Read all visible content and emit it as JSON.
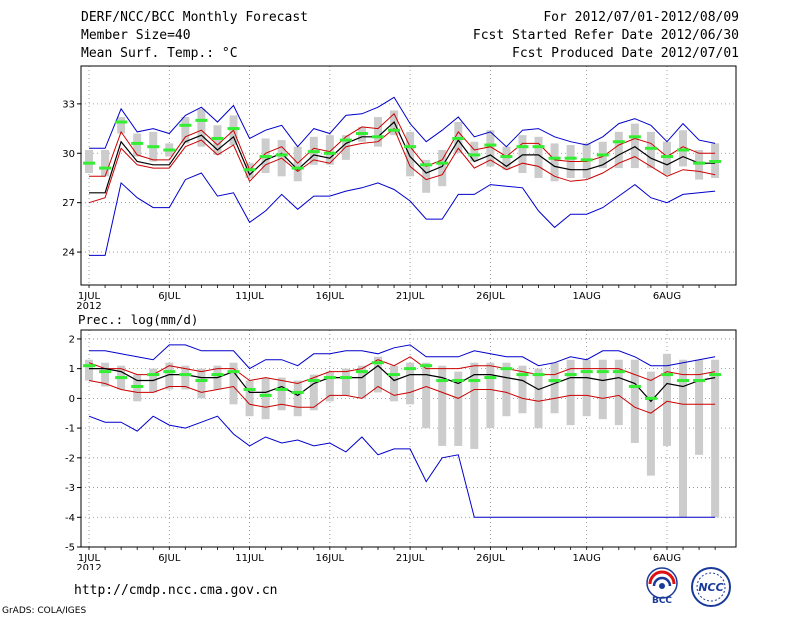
{
  "header": {
    "title": "DERF/NCC/BCC Monthly Forecast",
    "member": "Member Size=40",
    "variable": "Mean Surf. Temp.: °C",
    "period": "For 2012/07/01-2012/08/09",
    "started": "Fcst Started Refer Date 2012/06/30",
    "produced": "Fcst Produced Date 2012/07/01"
  },
  "footer": {
    "url": "http://cmdp.ncc.cma.gov.cn",
    "grads": "GrADS: COLA/IGES",
    "logo1_text": "BCC",
    "logo2_text": "NCC"
  },
  "colors": {
    "envelope": "#0000cc",
    "spread": "#cc0000",
    "mean": "#000000",
    "median": "#33ee33",
    "box": "#cccccc",
    "grid": "#888888"
  },
  "chart_data": [
    {
      "type": "line",
      "title": "",
      "ylabel": "Mean Surf. Temp.: °C",
      "xlabel": "",
      "x": [
        1,
        2,
        3,
        4,
        5,
        6,
        7,
        8,
        9,
        10,
        11,
        12,
        13,
        14,
        15,
        16,
        17,
        18,
        19,
        20,
        21,
        22,
        23,
        24,
        25,
        26,
        27,
        28,
        29,
        30,
        31,
        32,
        33,
        34,
        35,
        36,
        37,
        38,
        39,
        40
      ],
      "xlim": [
        0.5,
        41.3
      ],
      "ylim": [
        22,
        35.3
      ],
      "yticks": [
        24,
        27,
        30,
        33
      ],
      "xticks": [
        {
          "x": 1,
          "label": "1JUL"
        },
        {
          "x": 6,
          "label": "6JUL"
        },
        {
          "x": 11,
          "label": "11JUL"
        },
        {
          "x": 16,
          "label": "16JUL"
        },
        {
          "x": 21,
          "label": "21JUL"
        },
        {
          "x": 26,
          "label": "26JUL"
        },
        {
          "x": 32,
          "label": "1AUG"
        },
        {
          "x": 37,
          "label": "6AUG"
        }
      ],
      "year_label": "2012",
      "grid": true,
      "series": [
        {
          "name": "max",
          "values": [
            30.3,
            30.3,
            32.7,
            31.3,
            31.5,
            31.2,
            32.3,
            32.8,
            31.9,
            32.9,
            30.9,
            31.4,
            31.7,
            30.4,
            31.5,
            31.2,
            32.3,
            32.4,
            32.8,
            33.4,
            31.8,
            30.7,
            31.4,
            32.2,
            31.0,
            31.3,
            30.4,
            31.4,
            31.5,
            31.0,
            30.7,
            30.5,
            31.0,
            31.8,
            32.1,
            31.7,
            30.7,
            31.8,
            30.8,
            30.6
          ]
        },
        {
          "name": "upper",
          "values": [
            28.6,
            28.6,
            31.3,
            29.9,
            29.6,
            29.6,
            31.0,
            31.4,
            30.5,
            31.4,
            29.0,
            30.0,
            30.4,
            29.4,
            30.3,
            30.1,
            31.0,
            31.6,
            31.5,
            32.4,
            30.4,
            29.2,
            29.6,
            31.3,
            30.2,
            30.4,
            29.8,
            30.6,
            30.6,
            29.6,
            29.5,
            29.5,
            29.8,
            30.5,
            30.9,
            30.6,
            29.8,
            30.4,
            30.0,
            30.0
          ]
        },
        {
          "name": "mean",
          "values": [
            27.6,
            27.6,
            30.7,
            29.5,
            29.3,
            29.3,
            30.7,
            31.1,
            30.2,
            31.0,
            28.7,
            29.6,
            30.0,
            29.0,
            29.9,
            29.7,
            30.6,
            31.0,
            31.0,
            31.9,
            29.8,
            28.8,
            29.2,
            30.8,
            29.5,
            29.9,
            29.2,
            29.9,
            29.9,
            29.2,
            29.0,
            29.0,
            29.3,
            29.9,
            30.4,
            29.7,
            29.3,
            29.8,
            29.4,
            29.4
          ]
        },
        {
          "name": "lower",
          "values": [
            27.0,
            27.3,
            30.3,
            29.3,
            29.1,
            29.1,
            30.4,
            30.8,
            29.9,
            30.5,
            28.3,
            29.3,
            29.7,
            28.9,
            29.6,
            29.4,
            30.4,
            30.6,
            30.7,
            31.5,
            29.2,
            28.4,
            28.7,
            30.3,
            29.1,
            29.6,
            29.0,
            29.4,
            29.2,
            28.6,
            28.3,
            28.4,
            28.8,
            29.4,
            29.8,
            29.2,
            28.6,
            29.0,
            28.9,
            28.7
          ]
        },
        {
          "name": "min",
          "values": [
            23.8,
            23.8,
            28.2,
            27.3,
            26.7,
            26.7,
            28.4,
            28.8,
            27.4,
            27.6,
            25.8,
            26.5,
            27.5,
            26.6,
            27.4,
            27.4,
            27.7,
            27.9,
            28.2,
            27.8,
            27.1,
            26.0,
            26.0,
            27.5,
            27.5,
            28.1,
            28.0,
            27.9,
            26.5,
            25.5,
            26.3,
            26.3,
            26.7,
            27.4,
            28.1,
            27.3,
            27.0,
            27.5,
            27.6,
            27.7
          ]
        },
        {
          "name": "median",
          "values": [
            29.4,
            29.1,
            31.9,
            30.6,
            30.4,
            30.2,
            31.7,
            32.0,
            30.9,
            31.5,
            29.0,
            29.8,
            29.9,
            29.1,
            30.1,
            30.0,
            30.8,
            31.2,
            31.0,
            31.4,
            30.4,
            29.3,
            29.4,
            30.9,
            29.9,
            30.5,
            29.8,
            30.4,
            30.4,
            29.7,
            29.7,
            29.6,
            29.9,
            30.7,
            31.0,
            30.3,
            29.8,
            30.2,
            29.4,
            29.5
          ]
        }
      ],
      "boxes": {
        "low": [
          28.8,
          28.6,
          31.2,
          29.8,
          29.5,
          29.8,
          30.6,
          30.4,
          29.9,
          30.5,
          28.5,
          28.8,
          28.6,
          28.3,
          29.3,
          29.3,
          29.6,
          30.7,
          30.4,
          31.1,
          28.6,
          27.6,
          28.0,
          30.0,
          29.5,
          29.2,
          29.0,
          28.8,
          28.5,
          28.3,
          28.5,
          28.5,
          29.1,
          29.1,
          29.1,
          29.1,
          28.7,
          29.2,
          28.4,
          28.5
        ],
        "high": [
          30.2,
          30.2,
          32.2,
          31.2,
          31.3,
          30.6,
          32.2,
          32.7,
          31.7,
          32.3,
          29.4,
          30.9,
          30.8,
          30.4,
          31.0,
          31.1,
          31.1,
          31.6,
          32.2,
          32.6,
          31.3,
          29.6,
          30.2,
          31.9,
          30.7,
          31.4,
          30.4,
          31.1,
          31.0,
          30.6,
          30.5,
          30.6,
          30.7,
          31.3,
          31.8,
          31.3,
          30.7,
          31.4,
          30.2,
          30.6
        ]
      }
    },
    {
      "type": "line",
      "title": "",
      "ylabel": "Prec.: log(mm/d)",
      "xlabel": "",
      "x": [
        1,
        2,
        3,
        4,
        5,
        6,
        7,
        8,
        9,
        10,
        11,
        12,
        13,
        14,
        15,
        16,
        17,
        18,
        19,
        20,
        21,
        22,
        23,
        24,
        25,
        26,
        27,
        28,
        29,
        30,
        31,
        32,
        33,
        34,
        35,
        36,
        37,
        38,
        39,
        40
      ],
      "xlim": [
        0.5,
        41.3
      ],
      "ylim": [
        -5,
        2.3
      ],
      "yticks": [
        -5,
        -4,
        -3,
        -2,
        -1,
        0,
        1,
        2
      ],
      "xticks": [
        {
          "x": 1,
          "label": "1JUL"
        },
        {
          "x": 6,
          "label": "6JUL"
        },
        {
          "x": 11,
          "label": "11JUL"
        },
        {
          "x": 16,
          "label": "16JUL"
        },
        {
          "x": 21,
          "label": "21JUL"
        },
        {
          "x": 26,
          "label": "26JUL"
        },
        {
          "x": 32,
          "label": "1AUG"
        },
        {
          "x": 37,
          "label": "6AUG"
        }
      ],
      "year_label": "2012",
      "grid": true,
      "series": [
        {
          "name": "max",
          "values": [
            1.6,
            1.6,
            1.5,
            1.4,
            1.3,
            1.8,
            1.8,
            1.6,
            1.6,
            1.6,
            1.0,
            1.3,
            1.3,
            1.1,
            1.5,
            1.5,
            1.6,
            1.6,
            1.5,
            1.7,
            1.8,
            1.4,
            1.4,
            1.4,
            1.6,
            1.5,
            1.4,
            1.4,
            1.1,
            1.2,
            1.4,
            1.3,
            1.6,
            1.6,
            1.4,
            1.1,
            1.1,
            1.2,
            1.3,
            1.4
          ]
        },
        {
          "name": "upper",
          "values": [
            1.2,
            1.0,
            1.0,
            0.8,
            0.8,
            1.1,
            1.0,
            0.9,
            1.0,
            1.0,
            0.6,
            0.7,
            0.6,
            0.5,
            0.7,
            0.9,
            0.9,
            1.0,
            1.3,
            1.1,
            1.4,
            1.0,
            1.0,
            1.0,
            1.1,
            1.1,
            1.0,
            0.9,
            0.8,
            0.8,
            1.0,
            1.0,
            1.0,
            1.0,
            0.8,
            0.6,
            0.9,
            0.8,
            0.8,
            0.9
          ]
        },
        {
          "name": "mean",
          "values": [
            1.0,
            1.0,
            0.9,
            0.6,
            0.6,
            0.8,
            0.8,
            0.7,
            0.7,
            0.9,
            0.2,
            0.2,
            0.4,
            0.1,
            0.5,
            0.7,
            0.7,
            0.7,
            1.1,
            0.6,
            0.8,
            0.8,
            0.7,
            0.5,
            0.8,
            0.8,
            0.7,
            0.6,
            0.3,
            0.5,
            0.7,
            0.7,
            0.6,
            0.7,
            0.5,
            -0.1,
            0.5,
            0.4,
            0.6,
            0.7
          ]
        },
        {
          "name": "lower",
          "values": [
            0.6,
            0.5,
            0.3,
            0.2,
            0.2,
            0.4,
            0.4,
            0.2,
            0.3,
            0.4,
            -0.2,
            -0.3,
            -0.2,
            -0.3,
            -0.3,
            0.1,
            0.1,
            0.0,
            0.4,
            0.1,
            0.2,
            0.4,
            0.2,
            0.0,
            0.3,
            0.3,
            0.2,
            0.0,
            -0.1,
            0.0,
            0.1,
            0.1,
            0.0,
            0.1,
            -0.3,
            -0.5,
            -0.1,
            -0.2,
            -0.2,
            -0.2
          ]
        },
        {
          "name": "min",
          "values": [
            -0.6,
            -0.8,
            -0.8,
            -1.1,
            -0.6,
            -0.9,
            -1.0,
            -0.8,
            -0.6,
            -1.2,
            -1.6,
            -1.3,
            -1.5,
            -1.4,
            -1.6,
            -1.5,
            -1.8,
            -1.3,
            -1.9,
            -1.7,
            -1.7,
            -2.8,
            -2.0,
            -1.9,
            -4.0,
            -4.0,
            -4.0,
            -4.0,
            -4.0,
            -4.0,
            -4.0,
            -4.0,
            -4.0,
            -4.0,
            -4.0,
            -4.0,
            -4.0,
            -4.0,
            -4.0,
            -4.0
          ]
        },
        {
          "name": "median",
          "values": [
            1.1,
            0.9,
            0.7,
            0.4,
            0.8,
            0.9,
            0.8,
            0.6,
            0.8,
            0.9,
            0.3,
            0.1,
            0.3,
            0.2,
            0.6,
            0.7,
            0.7,
            0.9,
            1.2,
            0.8,
            1.0,
            1.1,
            0.6,
            0.6,
            0.6,
            0.7,
            1.0,
            0.8,
            0.8,
            0.6,
            0.8,
            0.9,
            0.9,
            0.9,
            0.4,
            0.0,
            0.8,
            0.6,
            0.6,
            0.8
          ]
        }
      ],
      "boxes": {
        "low": [
          0.6,
          0.4,
          0.3,
          -0.1,
          0.2,
          0.3,
          0.3,
          0.0,
          0.3,
          -0.2,
          -0.6,
          -0.7,
          -0.4,
          -0.6,
          -0.4,
          -0.1,
          0.1,
          0.0,
          0.2,
          -0.1,
          -0.2,
          -1.0,
          -1.6,
          -1.6,
          -1.7,
          -1.0,
          -0.6,
          -0.5,
          -1.0,
          -0.5,
          -0.9,
          -0.6,
          -0.7,
          -0.9,
          -1.5,
          -2.6,
          -1.6,
          -4.0,
          -1.9,
          -4.0
        ],
        "high": [
          1.3,
          1.2,
          1.1,
          0.8,
          1.0,
          1.2,
          1.1,
          1.0,
          1.1,
          1.2,
          0.6,
          0.7,
          0.7,
          0.6,
          0.8,
          0.9,
          1.0,
          1.1,
          1.4,
          1.1,
          1.2,
          1.2,
          1.1,
          0.9,
          1.2,
          1.2,
          1.2,
          1.1,
          1.0,
          1.2,
          1.3,
          1.3,
          1.3,
          1.3,
          1.3,
          0.9,
          1.5,
          1.3,
          1.3,
          1.3
        ]
      }
    }
  ]
}
